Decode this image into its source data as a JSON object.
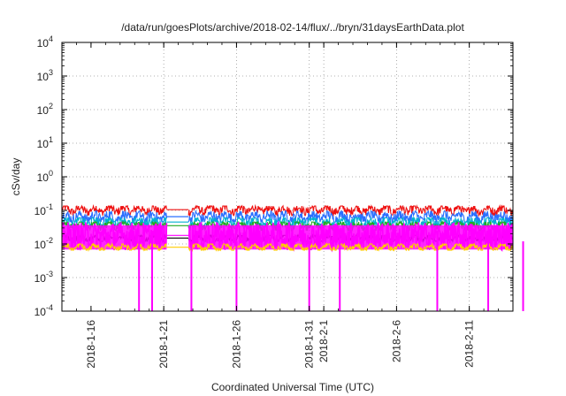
{
  "chart_data": {
    "type": "line",
    "title": "/data/run/goesPlots/archive/2018-02-14/flux/../bryn/31daysEarthData.plot",
    "xlabel": "Coordinated Universal Time (UTC)",
    "ylabel": "cSv/day",
    "yscale": "log",
    "ylim": [
      0.0001,
      10000
    ],
    "y_ticks": [
      {
        "base": "10",
        "exp": "-4"
      },
      {
        "base": "10",
        "exp": "-3"
      },
      {
        "base": "10",
        "exp": "-2"
      },
      {
        "base": "10",
        "exp": "-1"
      },
      {
        "base": "10",
        "exp": "0"
      },
      {
        "base": "10",
        "exp": "1"
      },
      {
        "base": "10",
        "exp": "2"
      },
      {
        "base": "10",
        "exp": "3"
      },
      {
        "base": "10",
        "exp": "4"
      }
    ],
    "xlim": [
      "2018-01-14",
      "2018-02-14"
    ],
    "x_ticks": [
      "2018-1-16",
      "2018-1-21",
      "2018-1-26",
      "2018-1-31",
      "2018-2-1",
      "2018-2-6",
      "2018-2-11"
    ],
    "grid": true,
    "legend": "none",
    "data_gap": {
      "start": "2018-01-21.2",
      "end": "2018-01-22.7"
    },
    "dropouts": [
      "2018-01-19.3",
      "2018-01-20.2",
      "2018-01-22.9",
      "2018-01-26.0",
      "2018-01-31.0",
      "2018-02-02.1",
      "2018-02-08.8",
      "2018-02-12.3",
      "2018-02-14.7"
    ],
    "series": [
      {
        "color": "#ee1111",
        "typical": 0.105,
        "min": 0.07,
        "max": 0.135
      },
      {
        "color": "#2a6fff",
        "typical": 0.065,
        "min": 0.045,
        "max": 0.095
      },
      {
        "color": "#00b0d0",
        "typical": 0.045,
        "min": 0.03,
        "max": 0.06
      },
      {
        "color": "#22aa22",
        "typical": 0.035,
        "min": 0.025,
        "max": 0.045
      },
      {
        "color": "#000000",
        "typical": 0.015,
        "min": 0.012,
        "max": 0.018
      },
      {
        "color": "#ff00ff",
        "typical": 0.018,
        "min": 0.0065,
        "max": 0.045
      },
      {
        "color": "#ffcc00",
        "typical": 0.008,
        "min": 0.0065,
        "max": 0.01
      }
    ]
  }
}
